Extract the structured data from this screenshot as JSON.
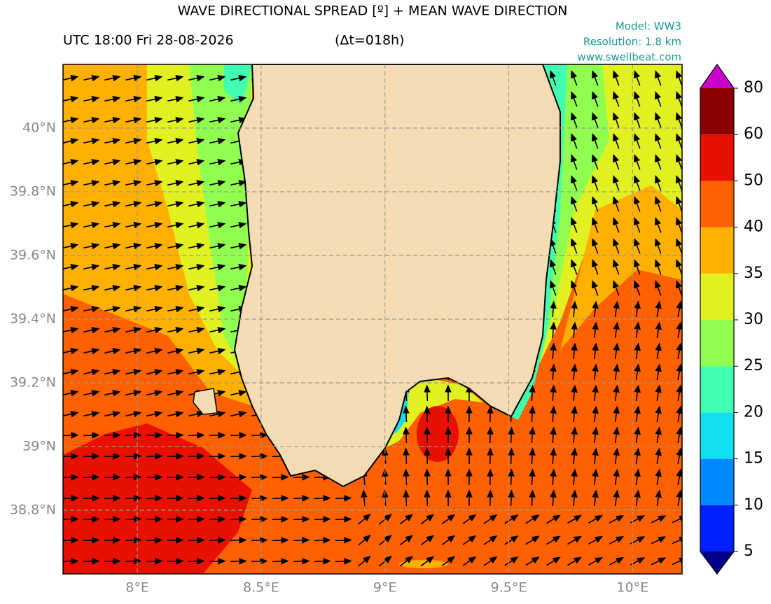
{
  "header": {
    "title": "WAVE DIRECTIONAL SPREAD [º] + MEAN WAVE DIRECTION",
    "time": "UTC 18:00 Fri 28-08-2026",
    "lead": "(Δt=018h)",
    "model": "Model: WW3",
    "resolution": "Resolution: 1.8 km",
    "website": "www.swellbeat.com"
  },
  "map": {
    "xlim": [
      7.7,
      10.2
    ],
    "ylim": [
      38.6,
      40.2
    ],
    "xticks": [
      {
        "value": 8,
        "label": "8°E"
      },
      {
        "value": 8.5,
        "label": "8.5°E"
      },
      {
        "value": 9,
        "label": "9°E"
      },
      {
        "value": 9.5,
        "label": "9.5°E"
      },
      {
        "value": 10,
        "label": "10°E"
      }
    ],
    "yticks": [
      {
        "value": 38.8,
        "label": "38.8°N"
      },
      {
        "value": 39,
        "label": "39°N"
      },
      {
        "value": 39.2,
        "label": "39.2°N"
      },
      {
        "value": 39.4,
        "label": "39.4°N"
      },
      {
        "value": 39.6,
        "label": "39.6°N"
      },
      {
        "value": 39.8,
        "label": "39.8°N"
      },
      {
        "value": 40,
        "label": "40°N"
      }
    ],
    "grid": true
  },
  "colorbar": {
    "levels": [
      5,
      10,
      15,
      20,
      25,
      30,
      35,
      40,
      50,
      60,
      80
    ],
    "colors": [
      "#0020ff",
      "#0088ff",
      "#10e0f0",
      "#40ffb0",
      "#90ff50",
      "#e0f020",
      "#ffb000",
      "#ff6000",
      "#e81000",
      "#8b0000"
    ],
    "under_color": "#00008b",
    "over_color": "#cc00cc"
  }
}
